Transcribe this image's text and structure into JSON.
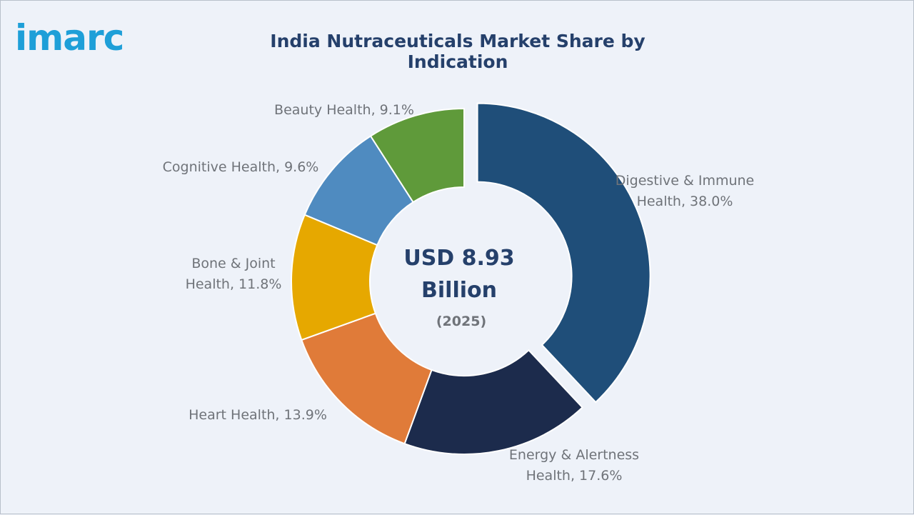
{
  "logo": {
    "text": "imarc"
  },
  "chart_data": {
    "type": "pie",
    "variant": "donut",
    "title": "India Nutraceuticals Market Share by Indication",
    "center": {
      "value_line1": "USD 8.93",
      "value_line2": "Billion",
      "year": "(2025)"
    },
    "slices": [
      {
        "label_lines": [
          "Digestive & Immune",
          "Health, 38.0%"
        ],
        "name": "Digestive & Immune Health",
        "value": 38.0,
        "color": "#1f4e79",
        "exploded": true
      },
      {
        "label_lines": [
          "Energy & Alertness",
          "Health, 17.6%"
        ],
        "name": "Energy & Alertness Health",
        "value": 17.6,
        "color": "#1c2b4c",
        "exploded": false
      },
      {
        "label_lines": [
          "Heart Health, 13.9%"
        ],
        "name": "Heart Health",
        "value": 13.9,
        "color": "#e07b39",
        "exploded": false
      },
      {
        "label_lines": [
          "Bone & Joint",
          "Health, 11.8%"
        ],
        "name": "Bone & Joint Health",
        "value": 11.8,
        "color": "#e6a800",
        "exploded": false
      },
      {
        "label_lines": [
          "Cognitive Health, 9.6%"
        ],
        "name": "Cognitive Health",
        "value": 9.6,
        "color": "#4f8bc0",
        "exploded": false
      },
      {
        "label_lines": [
          "Beauty Health, 9.1%"
        ],
        "name": "Beauty Health",
        "value": 9.1,
        "color": "#5f9a3a",
        "exploded": false
      }
    ]
  }
}
